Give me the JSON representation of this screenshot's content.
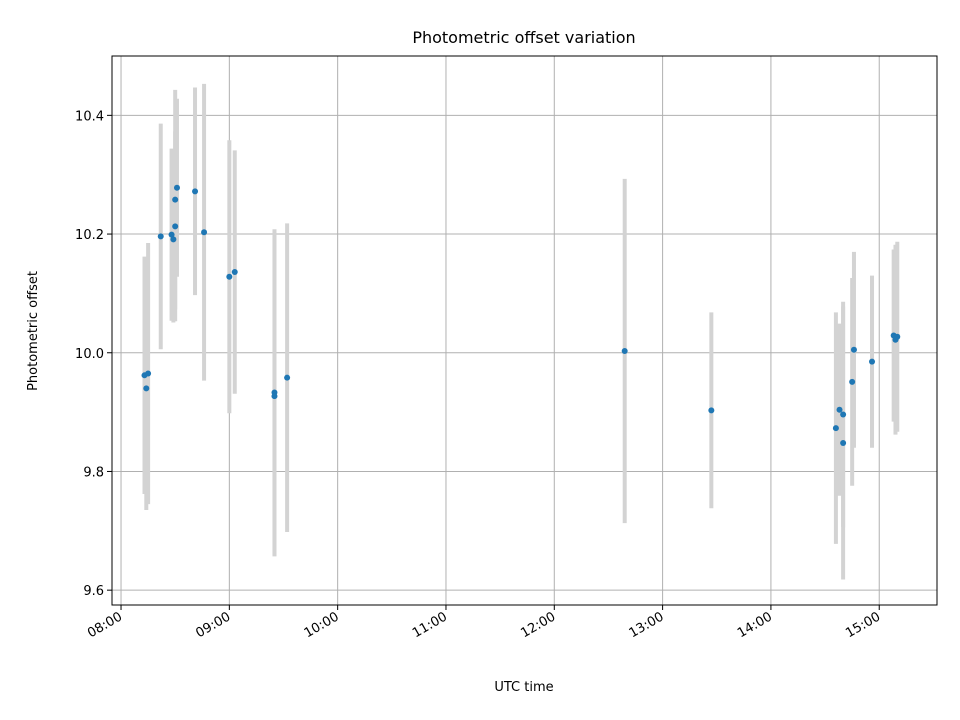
{
  "chart_data": {
    "type": "scatter",
    "title": "Photometric offset variation",
    "xlabel": "UTC time",
    "ylabel": "Photometric offset",
    "x_tick_labels": [
      "08:00",
      "09:00",
      "10:00",
      "11:00",
      "12:00",
      "13:00",
      "14:00",
      "15:00"
    ],
    "y_tick_labels": [
      "9.6",
      "9.8",
      "10.0",
      "10.2",
      "10.4"
    ],
    "y_ticks": [
      9.6,
      9.8,
      10.0,
      10.2,
      10.4
    ],
    "xlim": [
      "07:55",
      "15:32"
    ],
    "ylim": [
      9.575,
      10.5
    ],
    "grid": true,
    "point_color": "#1f77b4",
    "errorbar_color": "#d3d3d3",
    "points": [
      {
        "x": "08:13",
        "y": 9.962,
        "err": 0.2
      },
      {
        "x": "08:14",
        "y": 9.94,
        "err": 0.205
      },
      {
        "x": "08:15",
        "y": 9.965,
        "err": 0.22
      },
      {
        "x": "08:22",
        "y": 10.196,
        "err": 0.19
      },
      {
        "x": "08:28",
        "y": 10.199,
        "err": 0.145
      },
      {
        "x": "08:29",
        "y": 10.191,
        "err": 0.14
      },
      {
        "x": "08:30",
        "y": 10.258,
        "err": 0.185
      },
      {
        "x": "08:30",
        "y": 10.213,
        "err": 0.16
      },
      {
        "x": "08:31",
        "y": 10.278,
        "err": 0.15
      },
      {
        "x": "08:41",
        "y": 10.272,
        "err": 0.175
      },
      {
        "x": "08:46",
        "y": 10.203,
        "err": 0.25
      },
      {
        "x": "09:00",
        "y": 10.128,
        "err": 0.23
      },
      {
        "x": "09:03",
        "y": 10.136,
        "err": 0.205
      },
      {
        "x": "09:25",
        "y": 9.933,
        "err": 0.275
      },
      {
        "x": "09:25",
        "y": 9.927,
        "err": 0.27
      },
      {
        "x": "09:32",
        "y": 9.958,
        "err": 0.26
      },
      {
        "x": "12:39",
        "y": 10.003,
        "err": 0.29
      },
      {
        "x": "13:27",
        "y": 9.903,
        "err": 0.165
      },
      {
        "x": "14:36",
        "y": 9.873,
        "err": 0.195
      },
      {
        "x": "14:38",
        "y": 9.904,
        "err": 0.145
      },
      {
        "x": "14:40",
        "y": 9.896,
        "err": 0.19
      },
      {
        "x": "14:40",
        "y": 9.848,
        "err": 0.23
      },
      {
        "x": "14:45",
        "y": 9.951,
        "err": 0.175
      },
      {
        "x": "14:46",
        "y": 10.005,
        "err": 0.165
      },
      {
        "x": "14:56",
        "y": 9.985,
        "err": 0.145
      },
      {
        "x": "15:08",
        "y": 10.029,
        "err": 0.145
      },
      {
        "x": "15:09",
        "y": 10.022,
        "err": 0.16
      },
      {
        "x": "15:10",
        "y": 10.027,
        "err": 0.16
      }
    ]
  }
}
